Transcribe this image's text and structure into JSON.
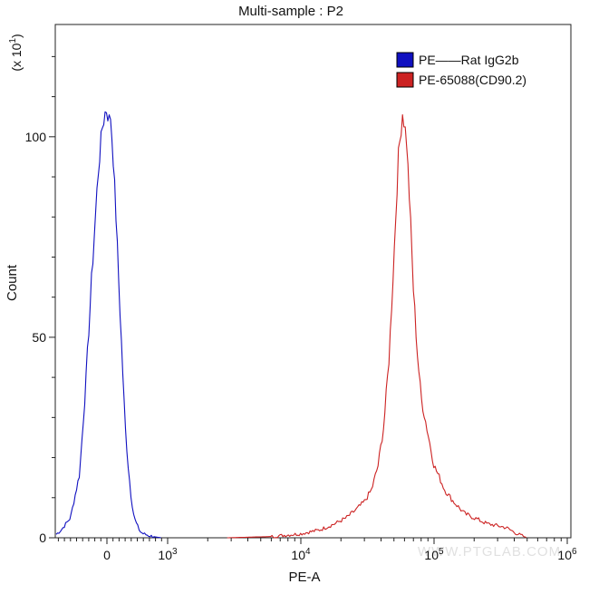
{
  "chart_data": {
    "type": "histogram",
    "title": "Multi-sample : P2",
    "xlabel": "PE-A",
    "ylabel": "Count",
    "y_multiplier_label": "(x 10",
    "y_multiplier_exp": "1",
    "y_multiplier_close": ")",
    "ylim": [
      0,
      128
    ],
    "y_ticks": [
      {
        "value": 0,
        "label": "0"
      },
      {
        "value": 50,
        "label": "50"
      },
      {
        "value": 100,
        "label": "100"
      }
    ],
    "x_scale": "biexponential",
    "x_ticks": [
      {
        "value": 0,
        "label": "0"
      },
      {
        "value": 1000,
        "base": "10",
        "exp": "3"
      },
      {
        "value": 10000,
        "base": "10",
        "exp": "4"
      },
      {
        "value": 100000,
        "base": "10",
        "exp": "5"
      },
      {
        "value": 1000000,
        "base": "10",
        "exp": "6"
      }
    ],
    "legend_position": "top-right",
    "watermark": "WWW.PTGLAB.COM",
    "series": [
      {
        "name": "PE——Rat IgG2b",
        "color": "#1010c0",
        "x": [
          -900,
          -750,
          -600,
          -450,
          -350,
          -250,
          -150,
          -80,
          -30,
          0,
          30,
          60,
          100,
          150,
          200,
          250,
          300,
          350,
          400,
          450,
          500,
          550,
          600,
          700,
          800,
          900
        ],
        "y": [
          0,
          2,
          5,
          16,
          38,
          65,
          90,
          102,
          106,
          107,
          104,
          105,
          96,
          80,
          62,
          45,
          28,
          18,
          10,
          5,
          3,
          1.5,
          1,
          0.5,
          0.2,
          0
        ]
      },
      {
        "name": "PE-65088(CD90.2)",
        "color": "#cc2222",
        "x": [
          2800,
          6000,
          10000,
          14000,
          18000,
          22000,
          26000,
          30000,
          34000,
          38000,
          42000,
          46000,
          50000,
          54000,
          58000,
          62000,
          66000,
          70000,
          75000,
          80000,
          90000,
          100000,
          110000,
          120000,
          140000,
          170000,
          200000,
          250000,
          300000,
          350000,
          420000,
          500000
        ],
        "y": [
          0,
          0.3,
          1,
          2,
          3.5,
          5,
          7,
          9,
          12,
          18,
          28,
          45,
          70,
          95,
          106,
          100,
          82,
          62,
          46,
          35,
          26,
          18,
          15,
          12,
          9,
          6,
          5,
          3.5,
          3,
          2.5,
          1,
          0
        ]
      }
    ]
  }
}
